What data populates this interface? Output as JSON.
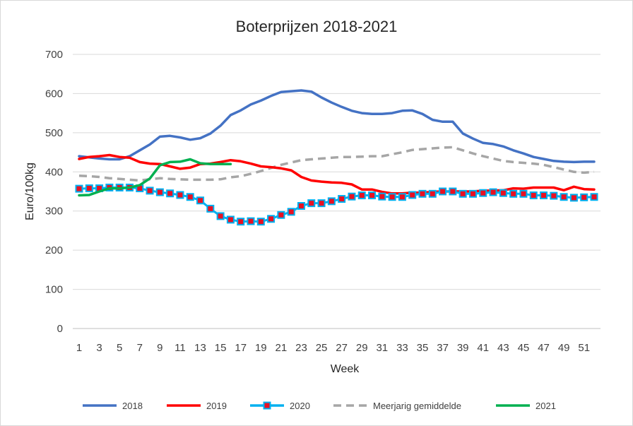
{
  "chart_data": {
    "type": "line",
    "title": "Boterprijzen 2018-2021",
    "xlabel": "Week",
    "ylabel": "Euro/100kg",
    "ylim": [
      0,
      700
    ],
    "yticks": [
      "0",
      "100",
      "200",
      "300",
      "400",
      "500",
      "600",
      "700"
    ],
    "xticks": [
      "1",
      "3",
      "5",
      "7",
      "9",
      "11",
      "13",
      "15",
      "17",
      "19",
      "21",
      "23",
      "25",
      "27",
      "29",
      "31",
      "33",
      "35",
      "37",
      "39",
      "41",
      "43",
      "45",
      "47",
      "49",
      "51"
    ],
    "xlim": [
      1,
      52
    ],
    "grid": "horizontal",
    "legend_position": "bottom",
    "series": [
      {
        "name": "2018",
        "color": "#4472c4",
        "style": "solid",
        "x": [
          1,
          2,
          3,
          4,
          5,
          6,
          7,
          8,
          9,
          10,
          11,
          12,
          13,
          14,
          15,
          16,
          17,
          18,
          19,
          20,
          21,
          22,
          23,
          24,
          25,
          26,
          27,
          28,
          29,
          30,
          31,
          32,
          33,
          34,
          35,
          36,
          37,
          38,
          39,
          40,
          41,
          42,
          43,
          44,
          45,
          46,
          47,
          48,
          49,
          50,
          51,
          52
        ],
        "values": [
          440,
          437,
          434,
          432,
          432,
          440,
          455,
          470,
          490,
          492,
          488,
          482,
          486,
          498,
          518,
          545,
          557,
          572,
          582,
          594,
          604,
          606,
          608,
          605,
          590,
          577,
          566,
          556,
          550,
          548,
          548,
          550,
          556,
          557,
          548,
          533,
          528,
          528,
          498,
          485,
          474,
          471,
          465,
          455,
          447,
          438,
          433,
          428,
          426,
          425,
          426,
          426
        ]
      },
      {
        "name": "2019",
        "color": "#ff0000",
        "style": "solid",
        "x": [
          1,
          2,
          3,
          4,
          5,
          6,
          7,
          8,
          9,
          10,
          11,
          12,
          13,
          14,
          15,
          16,
          17,
          18,
          19,
          20,
          21,
          22,
          23,
          24,
          25,
          26,
          27,
          28,
          29,
          30,
          31,
          32,
          33,
          34,
          35,
          36,
          37,
          38,
          39,
          40,
          41,
          42,
          43,
          44,
          45,
          46,
          47,
          48,
          49,
          50,
          51,
          52
        ],
        "values": [
          433,
          438,
          440,
          443,
          438,
          436,
          425,
          421,
          420,
          414,
          408,
          411,
          420,
          421,
          425,
          430,
          427,
          421,
          414,
          412,
          409,
          404,
          387,
          378,
          375,
          373,
          372,
          368,
          355,
          355,
          349,
          345,
          345,
          347,
          347,
          349,
          350,
          350,
          350,
          350,
          352,
          352,
          353,
          358,
          357,
          360,
          360,
          360,
          353,
          362,
          356,
          355
        ]
      },
      {
        "name": "2020",
        "color": "#00b0f0",
        "marker_color": "#e81123",
        "style": "solid-marker",
        "x": [
          1,
          2,
          3,
          4,
          5,
          6,
          7,
          8,
          9,
          10,
          11,
          12,
          13,
          14,
          15,
          16,
          17,
          18,
          19,
          20,
          21,
          22,
          23,
          24,
          25,
          26,
          27,
          28,
          29,
          30,
          31,
          32,
          33,
          34,
          35,
          36,
          37,
          38,
          39,
          40,
          41,
          42,
          43,
          44,
          45,
          46,
          47,
          48,
          49,
          50,
          51,
          52
        ],
        "values": [
          357,
          358,
          358,
          360,
          360,
          360,
          358,
          352,
          348,
          345,
          341,
          336,
          327,
          306,
          287,
          278,
          273,
          274,
          273,
          280,
          290,
          298,
          313,
          320,
          320,
          325,
          331,
          337,
          340,
          340,
          337,
          336,
          336,
          341,
          344,
          344,
          350,
          350,
          344,
          344,
          346,
          348,
          346,
          344,
          344,
          340,
          340,
          339,
          336,
          334,
          335,
          336
        ]
      },
      {
        "name": "Meerjarig gemiddelde",
        "color": "#a6a6a6",
        "style": "dashed",
        "x": [
          1,
          2,
          3,
          4,
          5,
          6,
          7,
          8,
          9,
          10,
          11,
          12,
          13,
          14,
          15,
          16,
          17,
          18,
          19,
          20,
          21,
          22,
          23,
          24,
          25,
          26,
          27,
          28,
          29,
          30,
          31,
          32,
          33,
          34,
          35,
          36,
          37,
          38,
          39,
          40,
          41,
          42,
          43,
          44,
          45,
          46,
          47,
          48,
          49,
          50,
          51,
          52
        ],
        "values": [
          390,
          389,
          387,
          384,
          382,
          380,
          378,
          381,
          384,
          382,
          381,
          380,
          380,
          380,
          381,
          386,
          389,
          395,
          402,
          410,
          418,
          424,
          430,
          432,
          434,
          436,
          438,
          438,
          439,
          440,
          440,
          445,
          450,
          456,
          458,
          460,
          462,
          463,
          455,
          447,
          440,
          434,
          428,
          425,
          423,
          421,
          418,
          412,
          406,
          400,
          398,
          400
        ]
      },
      {
        "name": "2021",
        "color": "#00b050",
        "style": "solid",
        "x": [
          1,
          2,
          3,
          4,
          5,
          6,
          7,
          8,
          9,
          10,
          11,
          12,
          13,
          14,
          15,
          16
        ],
        "values": [
          340,
          341,
          350,
          358,
          358,
          360,
          366,
          383,
          417,
          425,
          426,
          432,
          422,
          420,
          420,
          420
        ]
      }
    ]
  }
}
